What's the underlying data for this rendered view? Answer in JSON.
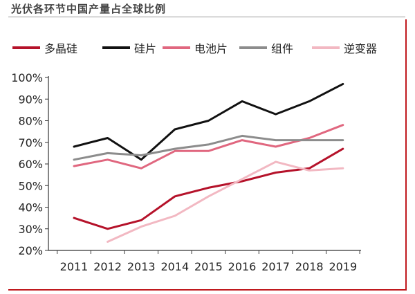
{
  "chart_data": {
    "type": "line",
    "title": "光伏各环节中国产量占全球比例",
    "xlabel": "",
    "ylabel": "",
    "categories": [
      "2011",
      "2012",
      "2013",
      "2014",
      "2015",
      "2016",
      "2017",
      "2018",
      "2019"
    ],
    "ylim": [
      0.2,
      1.0
    ],
    "yticks": [
      "20%",
      "30%",
      "40%",
      "50%",
      "60%",
      "70%",
      "80%",
      "90%",
      "100%"
    ],
    "grid": false,
    "legend_position": "top",
    "series": [
      {
        "name": "多晶硅",
        "color": "#b5122a",
        "values": [
          0.35,
          0.3,
          0.34,
          0.45,
          0.49,
          0.52,
          0.56,
          0.58,
          0.67
        ]
      },
      {
        "name": "硅片",
        "color": "#111111",
        "values": [
          0.68,
          0.72,
          0.62,
          0.76,
          0.8,
          0.89,
          0.83,
          0.89,
          0.97
        ]
      },
      {
        "name": "电池片",
        "color": "#e0677f",
        "values": [
          0.59,
          0.62,
          0.58,
          0.66,
          0.66,
          0.71,
          0.68,
          0.72,
          0.78
        ]
      },
      {
        "name": "组件",
        "color": "#8c8c8c",
        "values": [
          0.62,
          0.65,
          0.64,
          0.67,
          0.69,
          0.73,
          0.71,
          0.71,
          0.71
        ]
      },
      {
        "name": "逆变器",
        "color": "#f2b8c2",
        "values": [
          null,
          0.24,
          0.31,
          0.36,
          0.45,
          0.53,
          0.61,
          0.57,
          0.58
        ]
      }
    ]
  }
}
